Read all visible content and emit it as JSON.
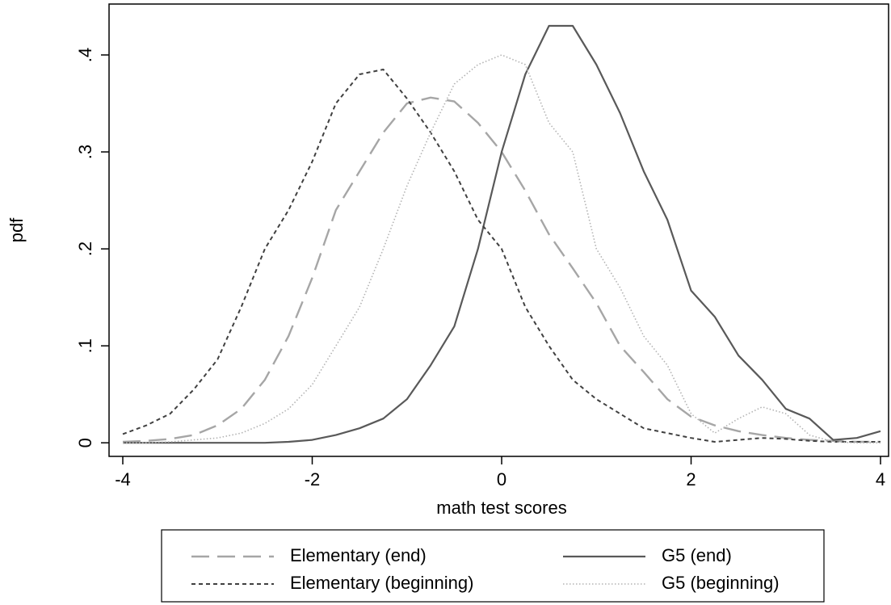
{
  "chart_data": {
    "type": "line",
    "x_label": "math test scores",
    "y_label": "pdf",
    "x": [
      -4,
      -3.75,
      -3.5,
      -3.25,
      -3,
      -2.75,
      -2.5,
      -2.25,
      -2,
      -1.75,
      -1.5,
      -1.25,
      -1,
      -0.75,
      -0.5,
      -0.25,
      0,
      0.25,
      0.5,
      0.75,
      1,
      1.25,
      1.5,
      1.75,
      2,
      2.25,
      2.5,
      2.75,
      3,
      3.25,
      3.5,
      3.75,
      4
    ],
    "series": [
      {
        "name": "Elementary (end)",
        "color": "#a6a6a6",
        "dash": "long",
        "values": [
          0.001,
          0.002,
          0.004,
          0.008,
          0.018,
          0.035,
          0.065,
          0.11,
          0.17,
          0.24,
          0.28,
          0.32,
          0.35,
          0.356,
          0.352,
          0.33,
          0.3,
          0.26,
          0.215,
          0.18,
          0.144,
          0.1,
          0.073,
          0.045,
          0.027,
          0.018,
          0.012,
          0.008,
          0.005,
          0.003,
          0.002,
          0.001,
          0.001
        ]
      },
      {
        "name": "G5 (end)",
        "color": "#595959",
        "dash": "solid",
        "values": [
          0,
          0,
          0,
          0,
          0,
          0,
          0,
          0.001,
          0.003,
          0.008,
          0.015,
          0.025,
          0.045,
          0.08,
          0.12,
          0.2,
          0.3,
          0.38,
          0.43,
          0.43,
          0.39,
          0.34,
          0.28,
          0.23,
          0.157,
          0.13,
          0.09,
          0.065,
          0.035,
          0.025,
          0.003,
          0.005,
          0.012
        ]
      },
      {
        "name": "Elementary (beginning)",
        "color": "#404040",
        "dash": "short",
        "values": [
          0.009,
          0.018,
          0.03,
          0.055,
          0.086,
          0.14,
          0.2,
          0.24,
          0.29,
          0.35,
          0.38,
          0.385,
          0.355,
          0.32,
          0.28,
          0.23,
          0.2,
          0.14,
          0.1,
          0.065,
          0.045,
          0.03,
          0.015,
          0.01,
          0.005,
          0.001,
          0.003,
          0.005,
          0.004,
          0.002,
          0.001,
          0.001,
          0.001
        ]
      },
      {
        "name": "G5 (beginning)",
        "color": "#b3b3b3",
        "dash": "dotted",
        "values": [
          0,
          0,
          0.001,
          0.003,
          0.005,
          0.01,
          0.02,
          0.035,
          0.06,
          0.1,
          0.14,
          0.2,
          0.265,
          0.32,
          0.37,
          0.39,
          0.4,
          0.39,
          0.33,
          0.3,
          0.2,
          0.16,
          0.11,
          0.08,
          0.03,
          0.01,
          0.025,
          0.037,
          0.03,
          0.008,
          0.001,
          0,
          0
        ]
      }
    ],
    "xlim": [
      -4.145,
      4.085
    ],
    "xticks": [
      -4,
      -2,
      0,
      2,
      4
    ],
    "ylim": [
      -0.014,
      0.4525
    ],
    "yticks": [
      0,
      {
        "value": 0.1,
        "label": ".1"
      },
      {
        "value": 0.2,
        "label": ".2"
      },
      {
        "value": 0.3,
        "label": ".3"
      },
      {
        "value": 0.4,
        "label": ".4"
      }
    ],
    "legend": "bottom"
  }
}
